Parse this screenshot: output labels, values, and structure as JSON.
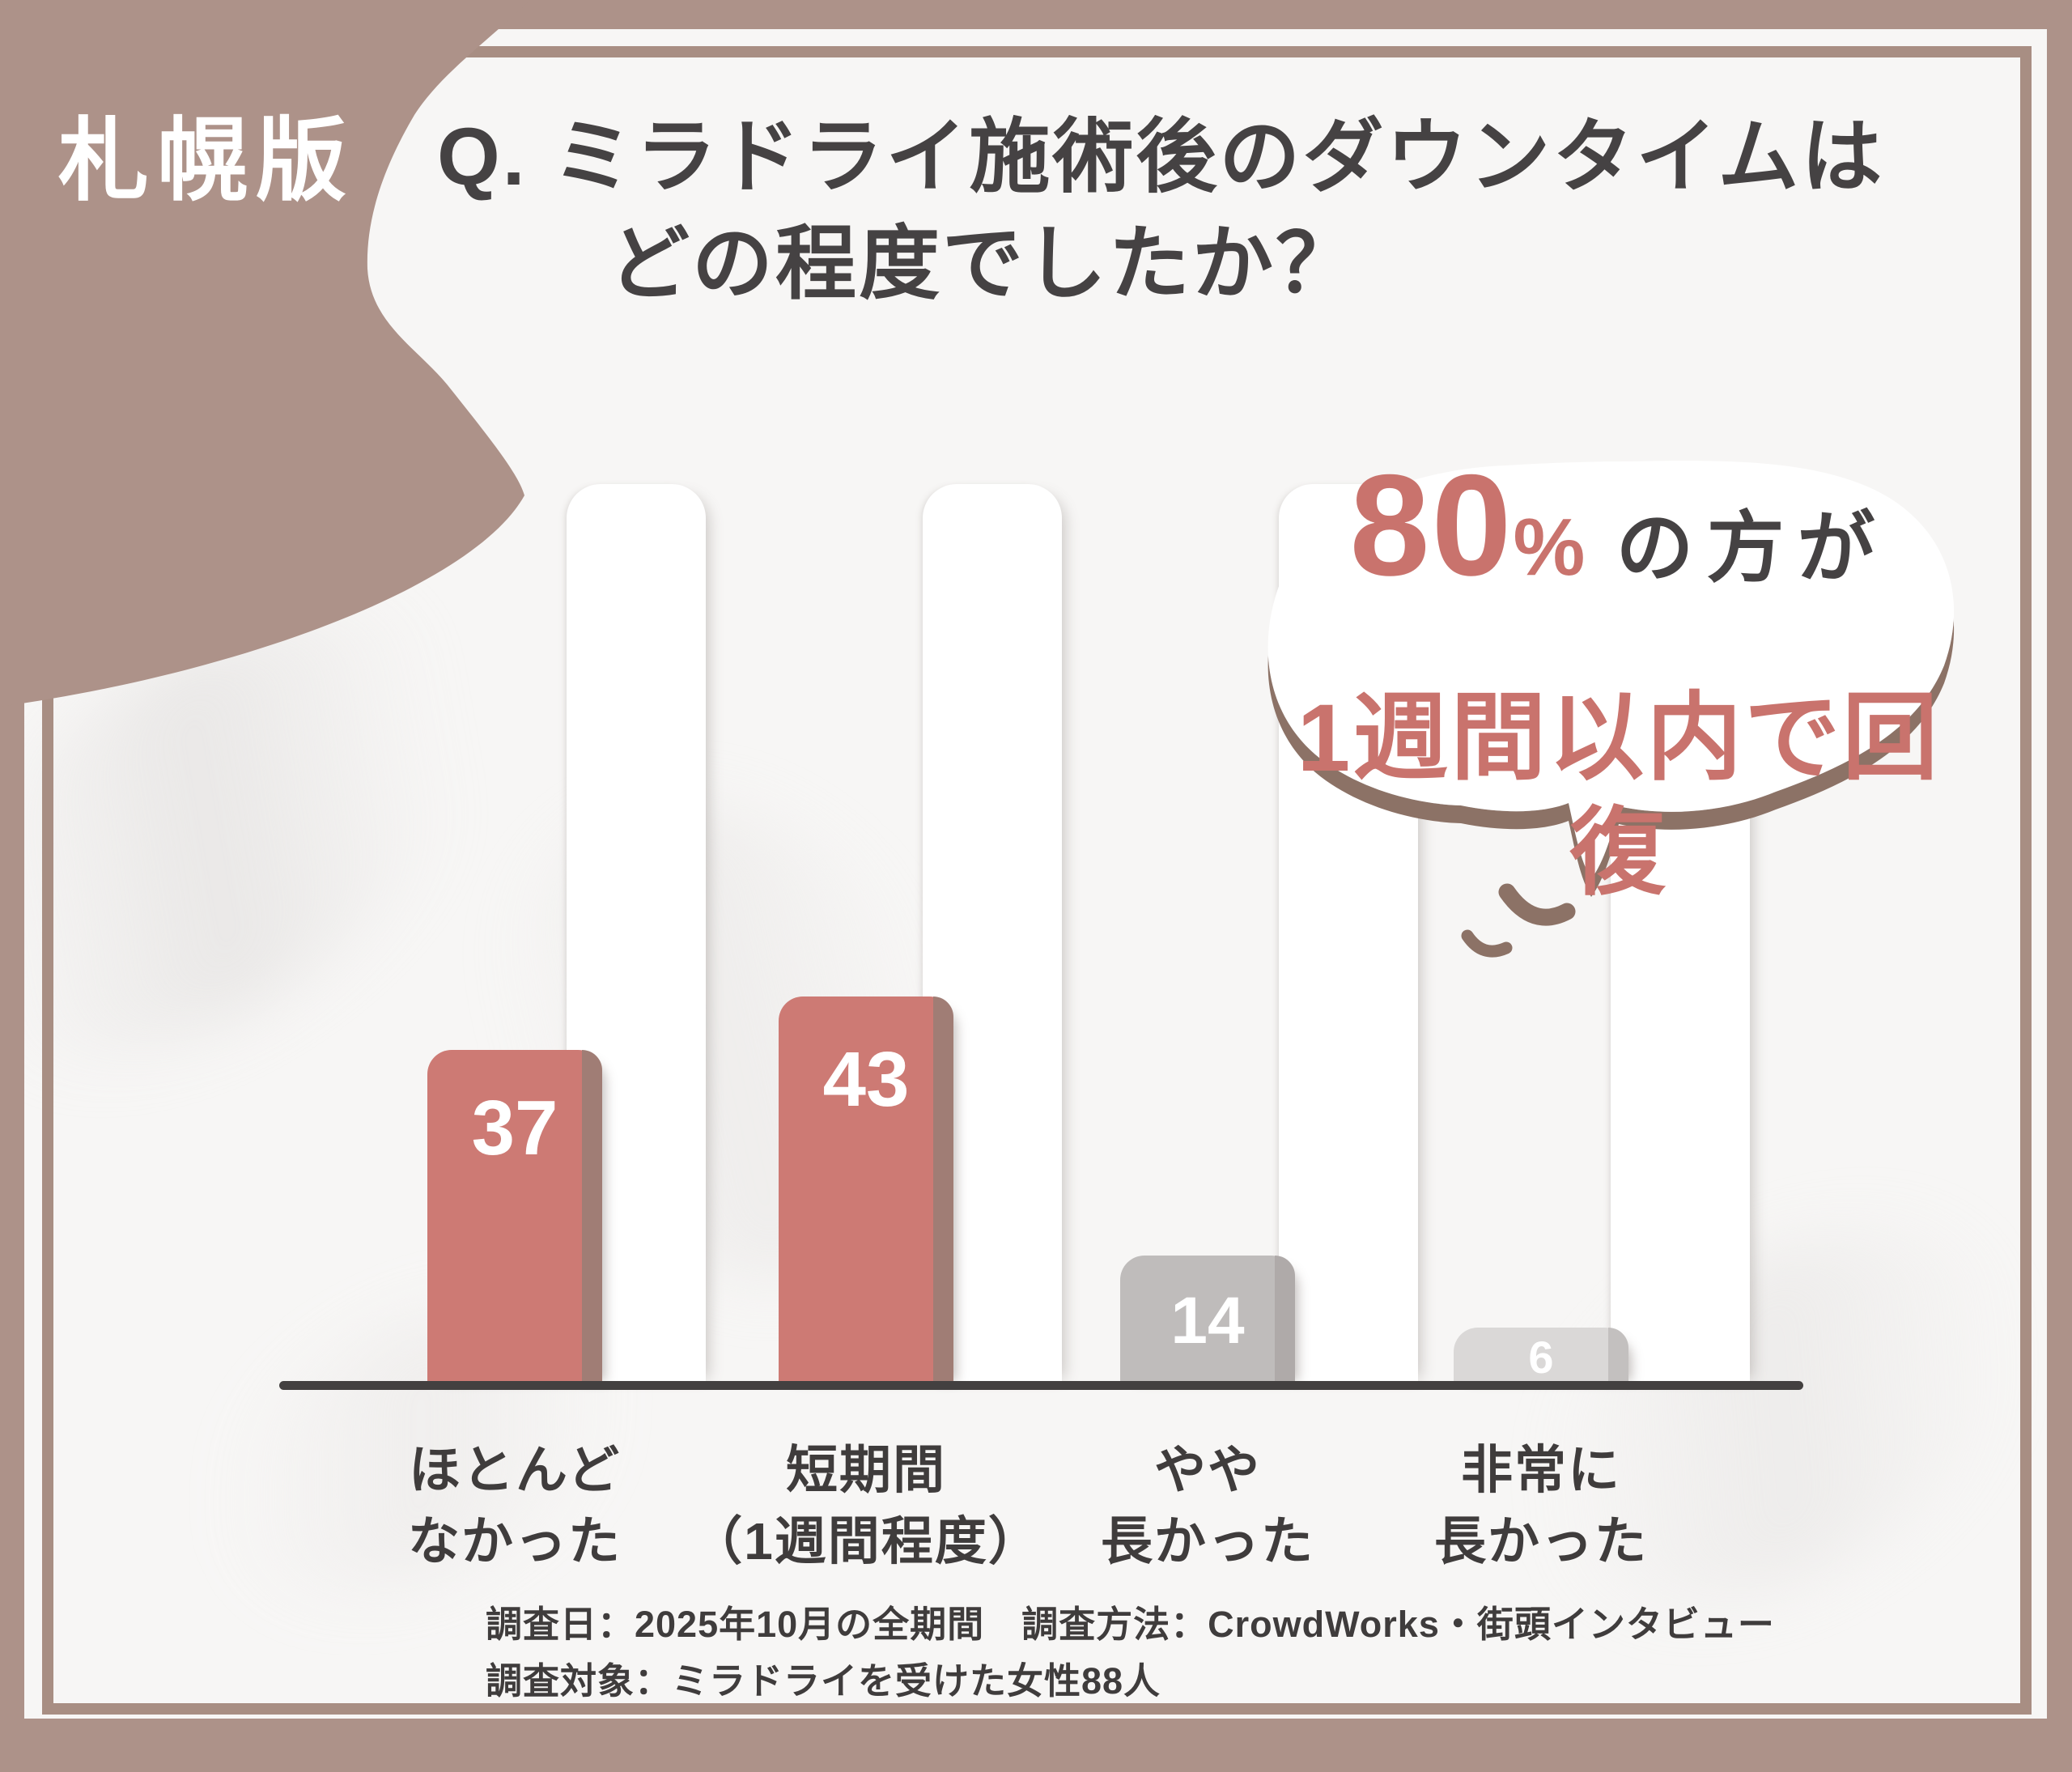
{
  "badge": {
    "label": "札幌版"
  },
  "title": {
    "line1": "Q. ミラドライ施術後のダウンタイムは",
    "line2": "どの程度でしたか？"
  },
  "bubble": {
    "stat": "80",
    "percent_sign": "%",
    "suffix": "の方が",
    "line2": "1週間以内で回復"
  },
  "chart_data": {
    "type": "bar",
    "title": "Q. ミラドライ施術後のダウンタイムはどの程度でしたか？",
    "categories": [
      "ほとんどなかった",
      "短期間（1週間程度）",
      "やや長かった",
      "非常に長かった"
    ],
    "values": [
      37,
      43,
      14,
      6
    ],
    "ylim": [
      0,
      45
    ],
    "grid": false,
    "annotation": "80%の方が1週間以内で回復",
    "bar_colors": [
      "#cd7a74",
      "#cd7a74",
      "#bfbcbb",
      "#dad8d7"
    ],
    "band_colors": [
      "#a07d75",
      "#a07d75",
      "#afaaa9",
      "#c3c0bf"
    ],
    "value_label_color": "#ffffff",
    "axis_color": "#434040"
  },
  "labels": [
    {
      "line1": "ほとんど",
      "line2": "なかった"
    },
    {
      "line1": "短期間",
      "line2": "（1週間程度）"
    },
    {
      "line1": "やや",
      "line2": "長かった"
    },
    {
      "line1": "非常に",
      "line2": "長かった"
    }
  ],
  "footer": {
    "line1": "調査日：2025年10月の全期間　調査方法：CrowdWorks・街頭インタビュー",
    "line2": "調査対象：ミラドライを受けた女性88人"
  },
  "colors": {
    "frame_brown": "#ad9289",
    "inner_line_brown": "#a88e83",
    "background": "#f7f6f5",
    "accent_pink": "#c9736d",
    "text_dark": "#454243",
    "bubble_shadow_brown": "#8c7266"
  }
}
